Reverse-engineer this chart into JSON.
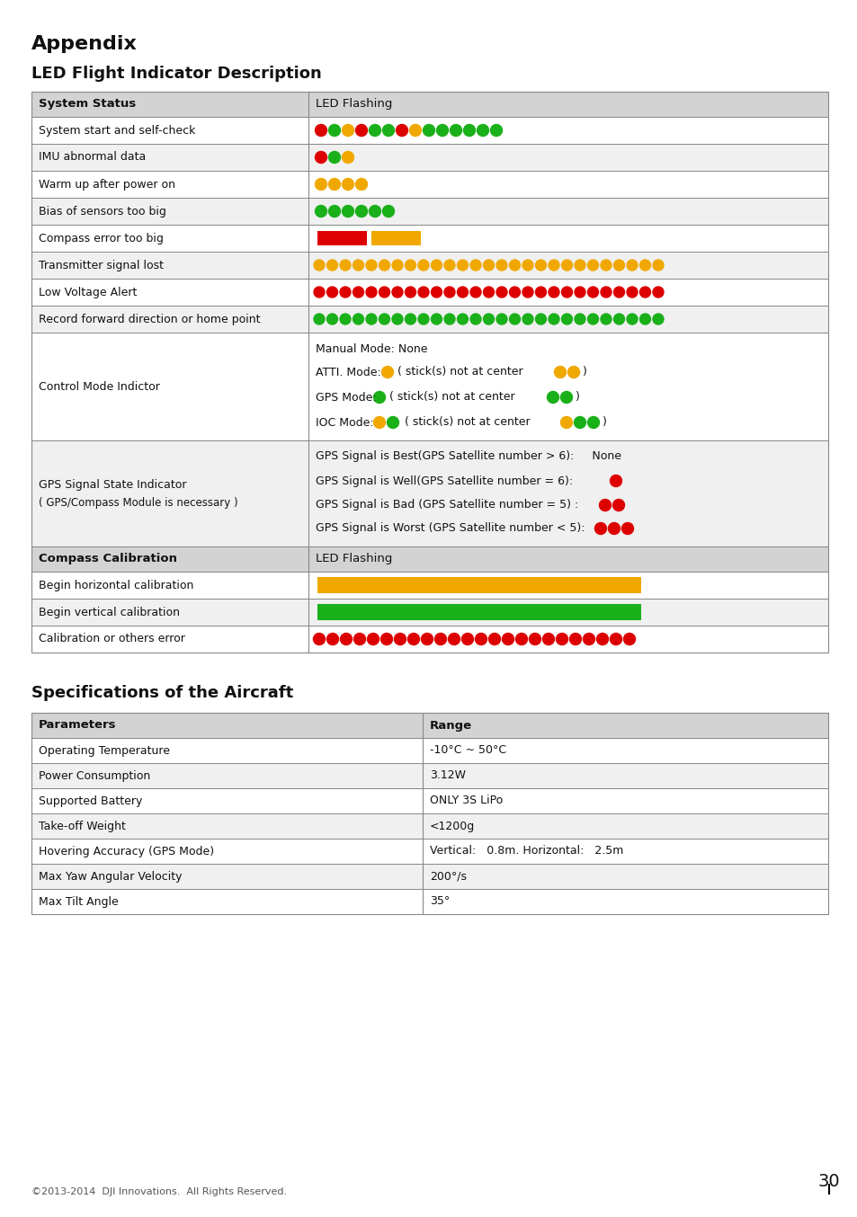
{
  "title1": "Appendix",
  "title2": "LED Flight Indicator Description",
  "title3": "Specifications of the Aircraft",
  "led_header": [
    "System Status",
    "LED Flashing"
  ],
  "spec_header": [
    "Parameters",
    "Range"
  ],
  "background": "#ffffff",
  "header_bg": "#d3d3d3",
  "row_bg_odd": "#f0f0f0",
  "row_bg_even": "#ffffff",
  "border_color": "#888888",
  "green": "#1ab01a",
  "red": "#dd0000",
  "yellow": "#f0a800",
  "specs": [
    [
      "Operating Temperature",
      "-10°C ~ 50°C"
    ],
    [
      "Power Consumption",
      "3.12W"
    ],
    [
      "Supported Battery",
      "ONLY 3S LiPo"
    ],
    [
      "Take-off Weight",
      "<1200g"
    ],
    [
      "Hovering Accuracy (GPS Mode)",
      "Vertical:   0.8m. Horizontal:   2.5m"
    ],
    [
      "Max Yaw Angular Velocity",
      "200°/s"
    ],
    [
      "Max Tilt Angle",
      "35°"
    ]
  ],
  "footer": "©2013-2014  DJI Innovations.  All Rights Reserved.",
  "page_num": "30"
}
